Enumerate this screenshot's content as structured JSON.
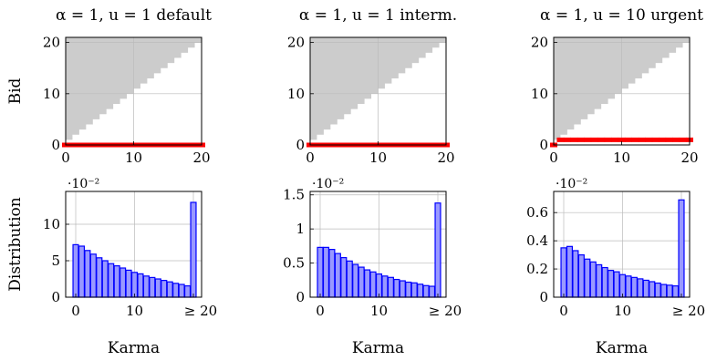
{
  "chart_data": [
    {
      "type": "scatter",
      "title": "α = 1, u = 1 default",
      "ylabel": "Bid",
      "xlim": [
        0,
        20
      ],
      "ylim": [
        0,
        21
      ],
      "xticks": [
        0,
        10,
        20
      ],
      "yticks": [
        0,
        10,
        20
      ],
      "xtick_labels": [
        "0",
        "10",
        "20"
      ],
      "ytick_labels": [
        "0",
        "10",
        "20"
      ],
      "grid": true,
      "infeasible_region": "bid > karma",
      "policy_color": "#ff0000",
      "policy": [
        {
          "karma": 0,
          "bid": 0
        },
        {
          "karma": 1,
          "bid": 0
        },
        {
          "karma": 2,
          "bid": 0
        },
        {
          "karma": 3,
          "bid": 0
        },
        {
          "karma": 4,
          "bid": 0
        },
        {
          "karma": 5,
          "bid": 0
        },
        {
          "karma": 6,
          "bid": 0
        },
        {
          "karma": 7,
          "bid": 0
        },
        {
          "karma": 8,
          "bid": 0
        },
        {
          "karma": 9,
          "bid": 0
        },
        {
          "karma": 10,
          "bid": 0
        },
        {
          "karma": 11,
          "bid": 0
        },
        {
          "karma": 12,
          "bid": 0
        },
        {
          "karma": 13,
          "bid": 0
        },
        {
          "karma": 14,
          "bid": 0
        },
        {
          "karma": 15,
          "bid": 0
        },
        {
          "karma": 16,
          "bid": 0
        },
        {
          "karma": 17,
          "bid": 0
        },
        {
          "karma": 18,
          "bid": 0
        },
        {
          "karma": 19,
          "bid": 0
        },
        {
          "karma": 20,
          "bid": 0
        }
      ]
    },
    {
      "type": "scatter",
      "title": "α = 1, u = 1 interm.",
      "ylabel": "",
      "xlim": [
        0,
        20
      ],
      "ylim": [
        0,
        21
      ],
      "xticks": [
        0,
        10,
        20
      ],
      "yticks": [
        0,
        10,
        20
      ],
      "xtick_labels": [
        "0",
        "10",
        "20"
      ],
      "ytick_labels": [
        "0",
        "10",
        "20"
      ],
      "grid": true,
      "infeasible_region": "bid > karma",
      "policy_color": "#ff0000",
      "policy": [
        {
          "karma": 0,
          "bid": 0
        },
        {
          "karma": 1,
          "bid": 0
        },
        {
          "karma": 2,
          "bid": 0
        },
        {
          "karma": 3,
          "bid": 0
        },
        {
          "karma": 4,
          "bid": 0
        },
        {
          "karma": 5,
          "bid": 0
        },
        {
          "karma": 6,
          "bid": 0
        },
        {
          "karma": 7,
          "bid": 0
        },
        {
          "karma": 8,
          "bid": 0
        },
        {
          "karma": 9,
          "bid": 0
        },
        {
          "karma": 10,
          "bid": 0
        },
        {
          "karma": 11,
          "bid": 0
        },
        {
          "karma": 12,
          "bid": 0
        },
        {
          "karma": 13,
          "bid": 0
        },
        {
          "karma": 14,
          "bid": 0
        },
        {
          "karma": 15,
          "bid": 0
        },
        {
          "karma": 16,
          "bid": 0
        },
        {
          "karma": 17,
          "bid": 0
        },
        {
          "karma": 18,
          "bid": 0
        },
        {
          "karma": 19,
          "bid": 0
        },
        {
          "karma": 20,
          "bid": 0
        }
      ]
    },
    {
      "type": "scatter",
      "title": "α = 1, u = 10 urgent",
      "ylabel": "",
      "xlim": [
        0,
        20
      ],
      "ylim": [
        0,
        21
      ],
      "xticks": [
        0,
        10,
        20
      ],
      "yticks": [
        0,
        10,
        20
      ],
      "xtick_labels": [
        "0",
        "10",
        "20"
      ],
      "ytick_labels": [
        "0",
        "10",
        "20"
      ],
      "grid": true,
      "infeasible_region": "bid > karma",
      "policy_color": "#ff0000",
      "policy": [
        {
          "karma": 0,
          "bid": 0
        },
        {
          "karma": 1,
          "bid": 1
        },
        {
          "karma": 2,
          "bid": 1
        },
        {
          "karma": 3,
          "bid": 1
        },
        {
          "karma": 4,
          "bid": 1
        },
        {
          "karma": 5,
          "bid": 1
        },
        {
          "karma": 6,
          "bid": 1
        },
        {
          "karma": 7,
          "bid": 1
        },
        {
          "karma": 8,
          "bid": 1
        },
        {
          "karma": 9,
          "bid": 1
        },
        {
          "karma": 10,
          "bid": 1
        },
        {
          "karma": 11,
          "bid": 1
        },
        {
          "karma": 12,
          "bid": 1
        },
        {
          "karma": 13,
          "bid": 1
        },
        {
          "karma": 14,
          "bid": 1
        },
        {
          "karma": 15,
          "bid": 1
        },
        {
          "karma": 16,
          "bid": 1
        },
        {
          "karma": 17,
          "bid": 1
        },
        {
          "karma": 18,
          "bid": 1
        },
        {
          "karma": 19,
          "bid": 1
        },
        {
          "karma": 20,
          "bid": 1
        }
      ]
    },
    {
      "type": "bar",
      "ylabel": "Distribution",
      "xlabel": "Karma",
      "scale_label": "·10⁻²",
      "categories": [
        "0",
        "1",
        "2",
        "3",
        "4",
        "5",
        "6",
        "7",
        "8",
        "9",
        "10",
        "11",
        "12",
        "13",
        "14",
        "15",
        "16",
        "17",
        "18",
        "19",
        "≥ 20"
      ],
      "values": [
        7.2,
        7.0,
        6.4,
        5.9,
        5.4,
        5.0,
        4.6,
        4.3,
        4.0,
        3.7,
        3.4,
        3.2,
        2.9,
        2.7,
        2.5,
        2.3,
        2.1,
        1.9,
        1.75,
        1.55,
        13.0
      ],
      "ylim": [
        0,
        14.5
      ],
      "yticks": [
        0,
        5,
        10
      ],
      "ytick_labels": [
        "0",
        "5",
        "10"
      ],
      "xticks": [
        0,
        10,
        20
      ],
      "xtick_labels": [
        "0",
        "10",
        "≥ 20"
      ],
      "grid": true,
      "bar_fill": "#9999ff",
      "bar_stroke": "#0000ff"
    },
    {
      "type": "bar",
      "ylabel": "",
      "xlabel": "Karma",
      "scale_label": "·10⁻²",
      "categories": [
        "0",
        "1",
        "2",
        "3",
        "4",
        "5",
        "6",
        "7",
        "8",
        "9",
        "10",
        "11",
        "12",
        "13",
        "14",
        "15",
        "16",
        "17",
        "18",
        "19",
        "≥ 20"
      ],
      "values": [
        0.73,
        0.73,
        0.7,
        0.64,
        0.58,
        0.53,
        0.48,
        0.44,
        0.4,
        0.37,
        0.34,
        0.31,
        0.29,
        0.26,
        0.24,
        0.22,
        0.21,
        0.19,
        0.17,
        0.16,
        1.38
      ],
      "ylim": [
        0,
        1.55
      ],
      "yticks": [
        0,
        0.5,
        1,
        1.5
      ],
      "ytick_labels": [
        "0",
        "0.5",
        "1",
        "1.5"
      ],
      "xticks": [
        0,
        10,
        20
      ],
      "xtick_labels": [
        "0",
        "10",
        "≥ 20"
      ],
      "grid": true,
      "bar_fill": "#9999ff",
      "bar_stroke": "#0000ff"
    },
    {
      "type": "bar",
      "ylabel": "",
      "xlabel": "Karma",
      "scale_label": "·10⁻²",
      "categories": [
        "0",
        "1",
        "2",
        "3",
        "4",
        "5",
        "6",
        "7",
        "8",
        "9",
        "10",
        "11",
        "12",
        "13",
        "14",
        "15",
        "16",
        "17",
        "18",
        "19",
        "≥ 20"
      ],
      "values": [
        0.35,
        0.36,
        0.33,
        0.3,
        0.27,
        0.25,
        0.23,
        0.21,
        0.19,
        0.18,
        0.16,
        0.15,
        0.14,
        0.13,
        0.12,
        0.11,
        0.1,
        0.09,
        0.085,
        0.08,
        0.69
      ],
      "ylim": [
        0,
        0.75
      ],
      "yticks": [
        0,
        0.2,
        0.4,
        0.6
      ],
      "ytick_labels": [
        "0",
        "0.2",
        "0.4",
        "0.6"
      ],
      "xticks": [
        0,
        10,
        20
      ],
      "xtick_labels": [
        "0",
        "10",
        "≥ 20"
      ],
      "grid": true,
      "bar_fill": "#9999ff",
      "bar_stroke": "#0000ff"
    }
  ]
}
